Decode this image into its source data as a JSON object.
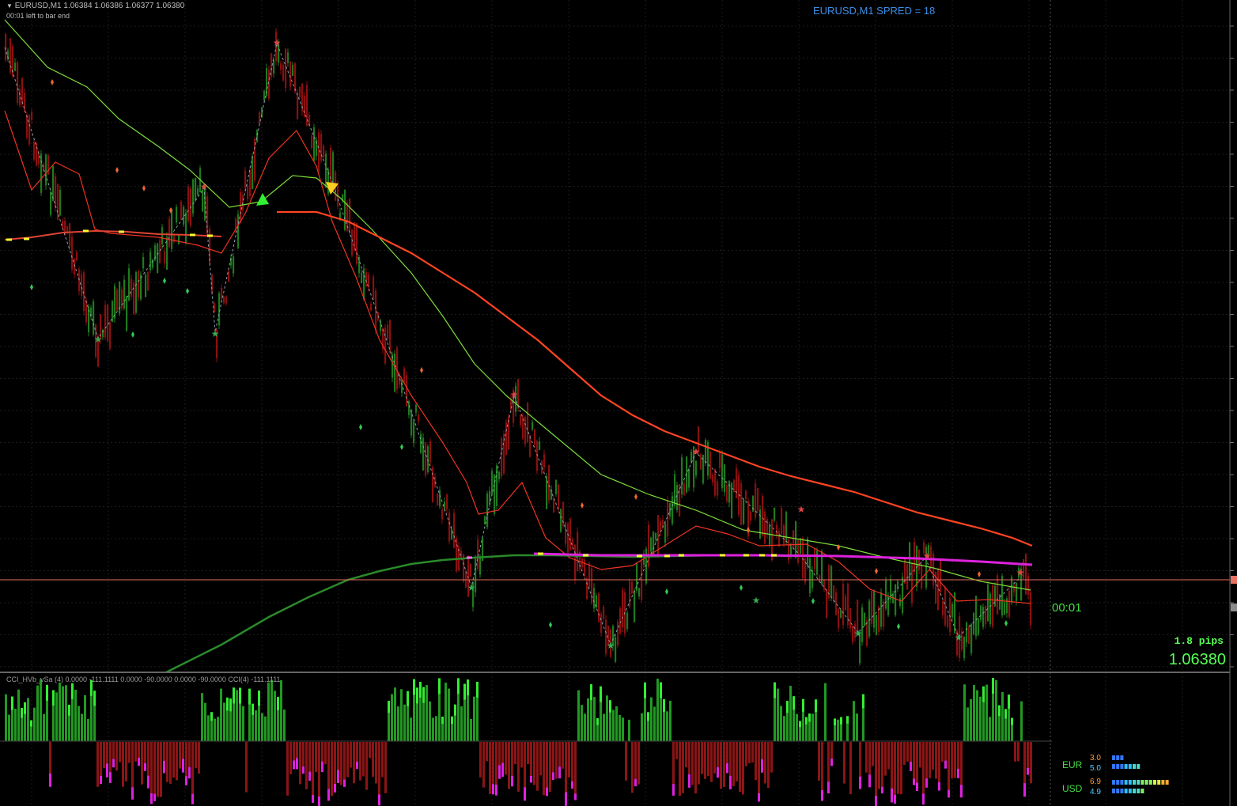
{
  "header": {
    "ohlc_text": "EURUSD,M1  1.06384 1.06386 1.06377 1.06380",
    "bar_timer_text": "00:01 left to bar end",
    "symbol_spread": "EURUSD,M1    SPRED = 18"
  },
  "info": {
    "bar_countdown": "00:01",
    "pips": "1.8 pips",
    "bid_price": "1.06380"
  },
  "cci_panel": {
    "label": "CCI_HVb_vSa (4) 0.0000 -111.1111 0.0000 -90.0000 0.0000 -90.0000 CCI(4) -111.1111"
  },
  "strength_meter": {
    "eur": {
      "name": "EUR",
      "value_a": "3.0",
      "value_b": "5.0",
      "a_fill": 0.45,
      "b_fill": 0.7
    },
    "usd": {
      "name": "USD",
      "value_a": "6.9",
      "value_b": "4.9",
      "a_fill": 1.0,
      "b_fill": 0.7
    }
  },
  "colors": {
    "background": "#000000",
    "bull_candle": "#1f7a1f",
    "bear_candle": "#8b1010",
    "ma_slow": "#ff4422",
    "ma_long": "#2a8a2a",
    "ma_fast": "#7ddc3a",
    "zigzag": "#8aa0b0",
    "price_line": "#e87060",
    "magenta_line": "#dd22dd",
    "cci_up": "#229922",
    "cci_down": "#8b1515",
    "cci_extreme": "#dd22dd"
  }
}
